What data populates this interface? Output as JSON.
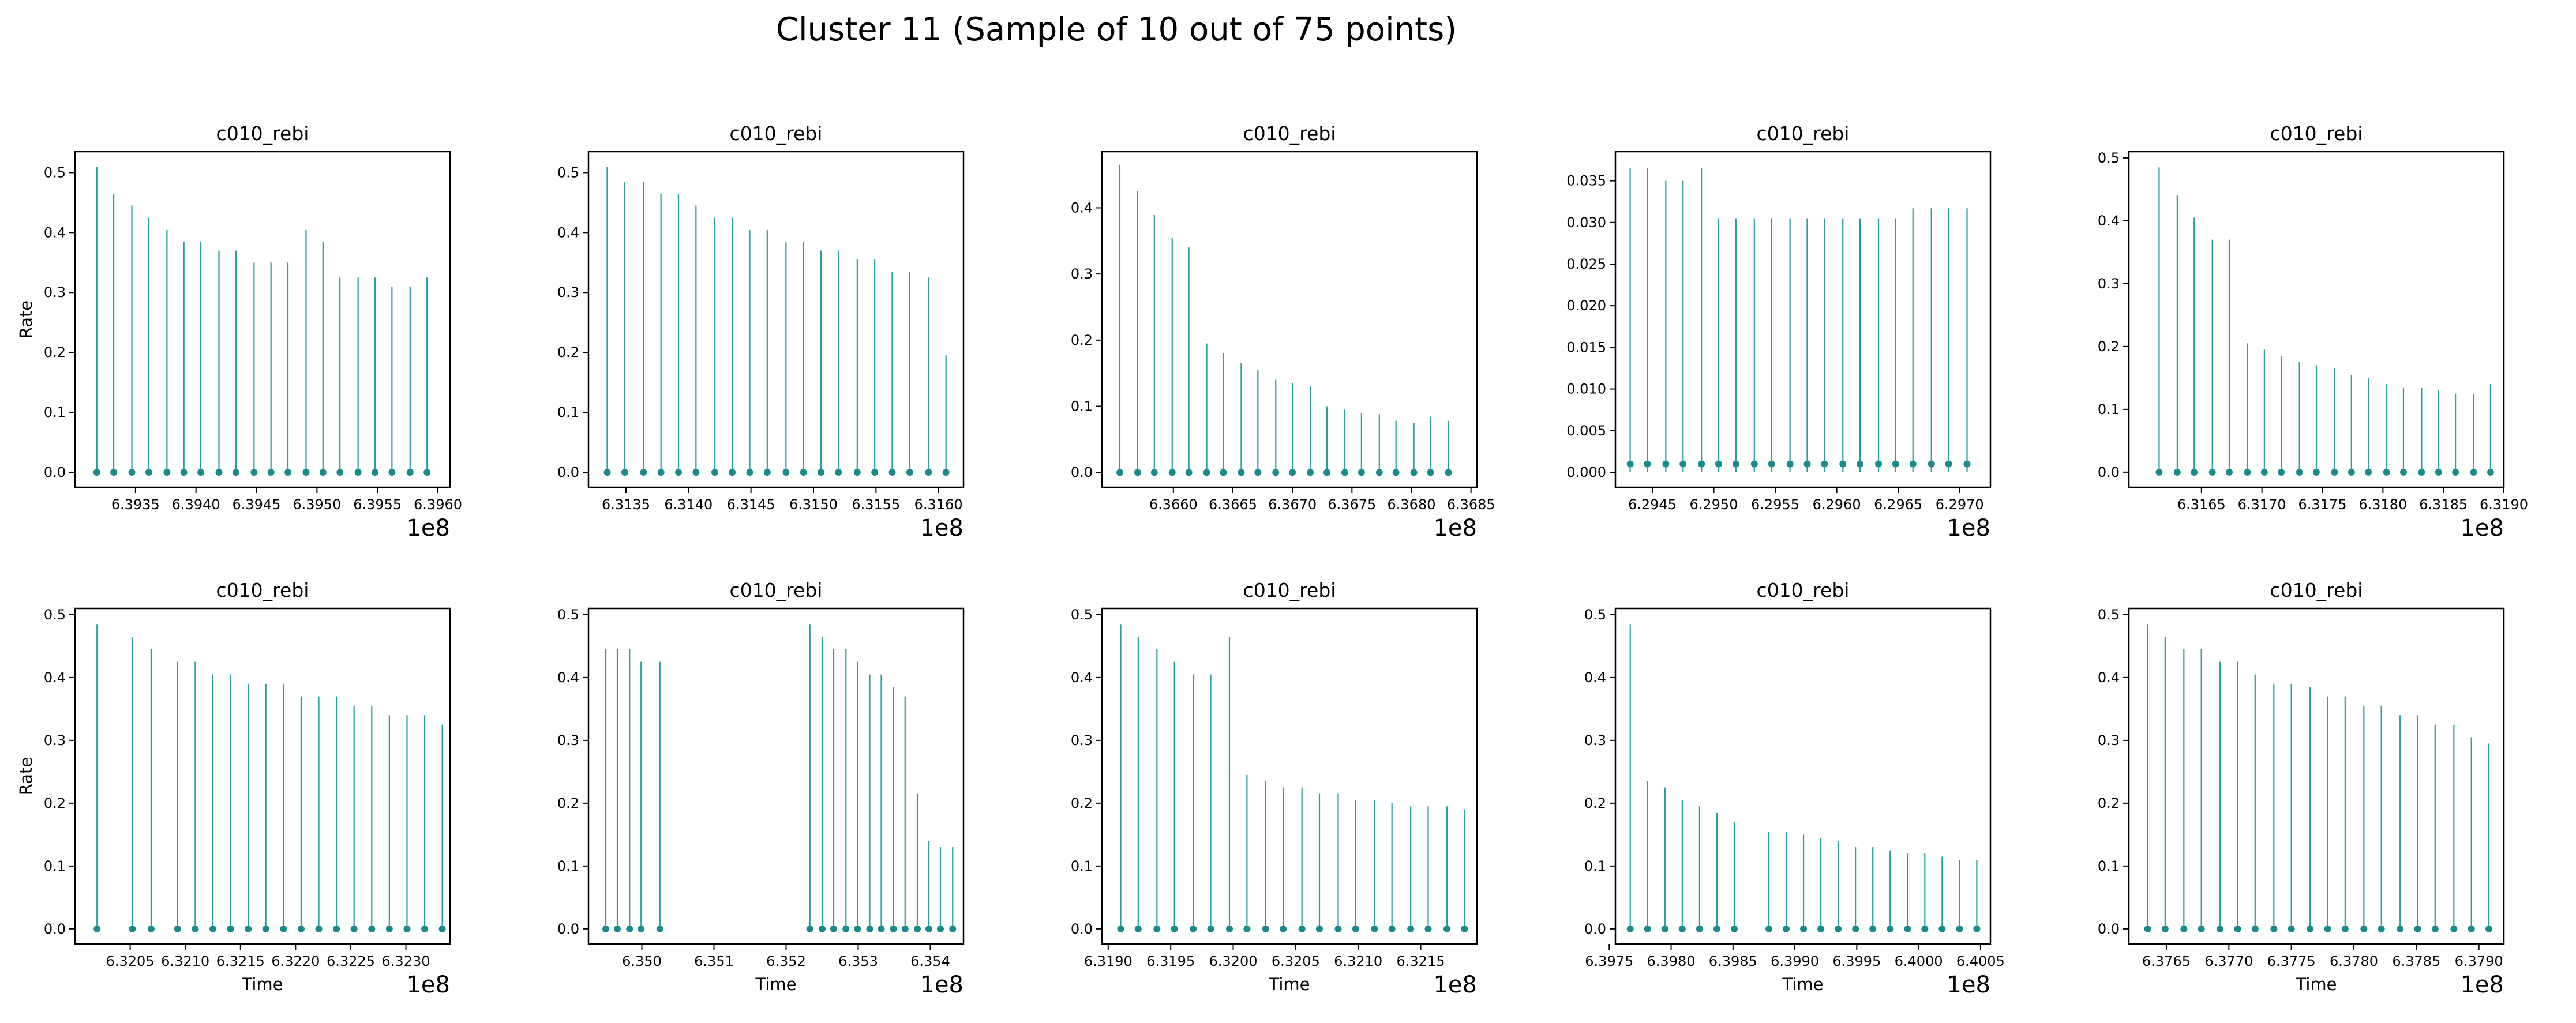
{
  "figure": {
    "title": "Cluster 11 (Sample of 10 out of 75 points)",
    "marker_color": "#1a8a8f",
    "stem_color": "#2a9d9f"
  },
  "chart_data": [
    {
      "type": "stem",
      "title": "c010_rebi",
      "ylabel": "Rate",
      "xlabel": "",
      "x_offset_label": "1e8",
      "xlim": [
        6.393,
        6.3961
      ],
      "ylim": [
        -0.025,
        0.535
      ],
      "xticks": [
        6.3935,
        6.394,
        6.3945,
        6.395,
        6.3955,
        6.396
      ],
      "xtick_labels": [
        "6.3935",
        "6.3940",
        "6.3945",
        "6.3950",
        "6.3955",
        "6.3960"
      ],
      "yticks": [
        0,
        0.1,
        0.2,
        0.3,
        0.4,
        0.5
      ],
      "ytick_labels": [
        "0.0",
        "0.1",
        "0.2",
        "0.3",
        "0.4",
        "0.5"
      ],
      "x": [
        6.39318,
        6.39332,
        6.39347,
        6.39361,
        6.39376,
        6.3939,
        6.39404,
        6.39419,
        6.39433,
        6.39448,
        6.39462,
        6.39476,
        6.39491,
        6.39505,
        6.39519,
        6.39534,
        6.39548,
        6.39562,
        6.39577,
        6.39591
      ],
      "y": [
        0.51,
        0.465,
        0.445,
        0.425,
        0.405,
        0.385,
        0.385,
        0.37,
        0.37,
        0.35,
        0.35,
        0.35,
        0.405,
        0.385,
        0.325,
        0.325,
        0.325,
        0.31,
        0.31,
        0.325
      ]
    },
    {
      "type": "stem",
      "title": "c010_rebi",
      "ylabel": "",
      "xlabel": "",
      "x_offset_label": "1e8",
      "xlim": [
        6.3132,
        6.3162
      ],
      "ylim": [
        -0.025,
        0.535
      ],
      "xticks": [
        6.3135,
        6.314,
        6.3145,
        6.315,
        6.3155,
        6.316
      ],
      "xtick_labels": [
        "6.3135",
        "6.3140",
        "6.3145",
        "6.3150",
        "6.3155",
        "6.3160"
      ],
      "yticks": [
        0,
        0.1,
        0.2,
        0.3,
        0.4,
        0.5
      ],
      "ytick_labels": [
        "0.0",
        "0.1",
        "0.2",
        "0.3",
        "0.4",
        "0.5"
      ],
      "x": [
        6.31335,
        6.31349,
        6.31364,
        6.31378,
        6.31392,
        6.31406,
        6.31421,
        6.31435,
        6.31449,
        6.31463,
        6.31478,
        6.31492,
        6.31506,
        6.3152,
        6.31535,
        6.31549,
        6.31563,
        6.31577,
        6.31592,
        6.31606
      ],
      "y": [
        0.51,
        0.485,
        0.485,
        0.465,
        0.465,
        0.445,
        0.425,
        0.425,
        0.405,
        0.405,
        0.385,
        0.385,
        0.37,
        0.37,
        0.355,
        0.355,
        0.335,
        0.335,
        0.325,
        0.195
      ]
    },
    {
      "type": "stem",
      "title": "c010_rebi",
      "ylabel": "",
      "xlabel": "",
      "x_offset_label": "1e8",
      "xlim": [
        6.3654,
        6.36855
      ],
      "ylim": [
        -0.0225,
        0.485
      ],
      "xticks": [
        6.366,
        6.3665,
        6.367,
        6.3675,
        6.368,
        6.3685
      ],
      "xtick_labels": [
        "6.3660",
        "6.3665",
        "6.3670",
        "6.3675",
        "6.3680",
        "6.3685"
      ],
      "yticks": [
        0,
        0.1,
        0.2,
        0.3,
        0.4
      ],
      "ytick_labels": [
        "0.0",
        "0.1",
        "0.2",
        "0.3",
        "0.4"
      ],
      "x": [
        6.36555,
        6.3657,
        6.36584,
        6.36599,
        6.36613,
        6.36628,
        6.36642,
        6.36657,
        6.36671,
        6.36686,
        6.367,
        6.36715,
        6.36729,
        6.36744,
        6.36758,
        6.36773,
        6.36787,
        6.36802,
        6.36816,
        6.36831
      ],
      "y": [
        0.465,
        0.425,
        0.39,
        0.355,
        0.34,
        0.195,
        0.18,
        0.165,
        0.155,
        0.14,
        0.135,
        0.13,
        0.1,
        0.095,
        0.09,
        0.088,
        0.078,
        0.075,
        0.084,
        0.078
      ]
    },
    {
      "type": "stem",
      "title": "c010_rebi",
      "ylabel": "",
      "xlabel": "",
      "x_offset_label": "1e8",
      "xlim": [
        6.2942,
        6.29725
      ],
      "ylim": [
        -0.0018,
        0.0385
      ],
      "xticks": [
        6.2945,
        6.295,
        6.2955,
        6.296,
        6.2965,
        6.297
      ],
      "xtick_labels": [
        "6.2945",
        "6.2950",
        "6.2955",
        "6.2960",
        "6.2965",
        "6.2970"
      ],
      "yticks": [
        0,
        0.005,
        0.01,
        0.015,
        0.02,
        0.025,
        0.03,
        0.035
      ],
      "ytick_labels": [
        "0.000",
        "0.005",
        "0.010",
        "0.015",
        "0.020",
        "0.025",
        "0.030",
        "0.035"
      ],
      "x": [
        6.29432,
        6.29446,
        6.29461,
        6.29475,
        6.2949,
        6.29504,
        6.29518,
        6.29533,
        6.29547,
        6.29562,
        6.29576,
        6.2959,
        6.29605,
        6.29619,
        6.29634,
        6.29648,
        6.29662,
        6.29677,
        6.29691,
        6.29706
      ],
      "y": [
        0.0365,
        0.0365,
        0.035,
        0.035,
        0.0365,
        0.0305,
        0.0305,
        0.0305,
        0.0305,
        0.0305,
        0.0305,
        0.0305,
        0.0305,
        0.0305,
        0.0305,
        0.0305,
        0.0317,
        0.0317,
        0.0317,
        0.0317
      ],
      "marker_y": 0.001
    },
    {
      "type": "stem",
      "title": "c010_rebi",
      "ylabel": "",
      "xlabel": "",
      "x_offset_label": "1e8",
      "xlim": [
        6.3159,
        6.319
      ],
      "ylim": [
        -0.024,
        0.51
      ],
      "xticks": [
        6.3165,
        6.317,
        6.3175,
        6.318,
        6.3185,
        6.319
      ],
      "xtick_labels": [
        "6.3165",
        "6.3170",
        "6.3175",
        "6.3180",
        "6.3185",
        "6.3190"
      ],
      "yticks": [
        0,
        0.1,
        0.2,
        0.3,
        0.4,
        0.5
      ],
      "ytick_labels": [
        "0.0",
        "0.1",
        "0.2",
        "0.3",
        "0.4",
        "0.5"
      ],
      "x": [
        6.31615,
        6.3163,
        6.31644,
        6.31659,
        6.31673,
        6.31688,
        6.31702,
        6.31716,
        6.31731,
        6.31745,
        6.3176,
        6.31774,
        6.31788,
        6.31803,
        6.31817,
        6.31832,
        6.31846,
        6.3186,
        6.31875,
        6.31889
      ],
      "y": [
        0.485,
        0.44,
        0.405,
        0.37,
        0.37,
        0.205,
        0.195,
        0.185,
        0.175,
        0.17,
        0.165,
        0.155,
        0.15,
        0.14,
        0.135,
        0.135,
        0.13,
        0.125,
        0.125,
        0.14
      ]
    },
    {
      "type": "stem",
      "title": "c010_rebi",
      "ylabel": "Rate",
      "xlabel": "Time",
      "x_offset_label": "1e8",
      "xlim": [
        6.32,
        6.3234
      ],
      "ylim": [
        -0.024,
        0.51
      ],
      "xticks": [
        6.3205,
        6.321,
        6.3215,
        6.322,
        6.3225,
        6.323
      ],
      "xtick_labels": [
        "6.3205",
        "6.3210",
        "6.3215",
        "6.3220",
        "6.3225",
        "6.3230"
      ],
      "yticks": [
        0,
        0.1,
        0.2,
        0.3,
        0.4,
        0.5
      ],
      "ytick_labels": [
        "0.0",
        "0.1",
        "0.2",
        "0.3",
        "0.4",
        "0.5"
      ],
      "x": [
        6.3202,
        6.32052,
        6.32069,
        6.32093,
        6.32109,
        6.32125,
        6.32141,
        6.32157,
        6.32173,
        6.32189,
        6.32205,
        6.32221,
        6.32237,
        6.32253,
        6.32269,
        6.32285,
        6.32301,
        6.32317,
        6.32333
      ],
      "y": [
        0.485,
        0.465,
        0.445,
        0.425,
        0.425,
        0.405,
        0.405,
        0.39,
        0.39,
        0.39,
        0.37,
        0.37,
        0.37,
        0.355,
        0.355,
        0.34,
        0.34,
        0.34,
        0.325
      ]
    },
    {
      "type": "stem",
      "title": "c010_rebi",
      "ylabel": "",
      "xlabel": "Time",
      "x_offset_label": "1e8",
      "xlim": [
        6.34926,
        6.35446
      ],
      "ylim": [
        -0.024,
        0.51
      ],
      "xticks": [
        6.35,
        6.351,
        6.352,
        6.353,
        6.354
      ],
      "xtick_labels": [
        "6.350",
        "6.351",
        "6.352",
        "6.353",
        "6.354"
      ],
      "yticks": [
        0,
        0.1,
        0.2,
        0.3,
        0.4,
        0.5
      ],
      "ytick_labels": [
        "0.0",
        "0.1",
        "0.2",
        "0.3",
        "0.4",
        "0.5"
      ],
      "x": [
        6.3495,
        6.34966,
        6.34983,
        6.34999,
        6.35025,
        6.35233,
        6.3525,
        6.35266,
        6.35283,
        6.35299,
        6.35316,
        6.35332,
        6.35349,
        6.35365,
        6.35382,
        6.35398,
        6.35414,
        6.35431
      ],
      "y": [
        0.445,
        0.445,
        0.445,
        0.425,
        0.425,
        0.485,
        0.465,
        0.445,
        0.445,
        0.425,
        0.405,
        0.405,
        0.385,
        0.37,
        0.215,
        0.14,
        0.13,
        0.13
      ]
    },
    {
      "type": "stem",
      "title": "c010_rebi",
      "ylabel": "",
      "xlabel": "Time",
      "x_offset_label": "1e8",
      "xlim": [
        6.31895,
        6.32195
      ],
      "ylim": [
        -0.024,
        0.51
      ],
      "xticks": [
        6.319,
        6.3195,
        6.32,
        6.3205,
        6.321,
        6.3215
      ],
      "xtick_labels": [
        "6.3190",
        "6.3195",
        "6.3200",
        "6.3205",
        "6.3210",
        "6.3215"
      ],
      "yticks": [
        0,
        0.1,
        0.2,
        0.3,
        0.4,
        0.5
      ],
      "ytick_labels": [
        "0.0",
        "0.1",
        "0.2",
        "0.3",
        "0.4",
        "0.5"
      ],
      "x": [
        6.3191,
        6.31924,
        6.31939,
        6.31953,
        6.31968,
        6.31982,
        6.31997,
        6.32011,
        6.32026,
        6.3204,
        6.32055,
        6.32069,
        6.32084,
        6.32098,
        6.32113,
        6.32127,
        6.32142,
        6.32156,
        6.32171,
        6.32185
      ],
      "y": [
        0.485,
        0.465,
        0.445,
        0.425,
        0.405,
        0.405,
        0.465,
        0.245,
        0.235,
        0.225,
        0.225,
        0.215,
        0.215,
        0.205,
        0.205,
        0.2,
        0.195,
        0.195,
        0.195,
        0.19
      ]
    },
    {
      "type": "stem",
      "title": "c010_rebi",
      "ylabel": "",
      "xlabel": "Time",
      "x_offset_label": "1e8",
      "xlim": [
        6.39755,
        6.40058
      ],
      "ylim": [
        -0.024,
        0.51
      ],
      "xticks": [
        6.3975,
        6.398,
        6.3985,
        6.399,
        6.3995,
        6.4,
        6.4005
      ],
      "xtick_labels": [
        "6.3975",
        "6.3980",
        "6.3985",
        "6.3990",
        "6.3995",
        "6.4000",
        "6.4005"
      ],
      "yticks": [
        0,
        0.1,
        0.2,
        0.3,
        0.4,
        0.5
      ],
      "ytick_labels": [
        "0.0",
        "0.1",
        "0.2",
        "0.3",
        "0.4",
        "0.5"
      ],
      "x": [
        6.39767,
        6.39781,
        6.39795,
        6.39809,
        6.39823,
        6.39837,
        6.39851,
        6.39879,
        6.39893,
        6.39907,
        6.39921,
        6.39935,
        6.39949,
        6.39963,
        6.39977,
        6.39991,
        6.40005,
        6.40019,
        6.40033,
        6.40047
      ],
      "y": [
        0.485,
        0.235,
        0.225,
        0.205,
        0.195,
        0.185,
        0.17,
        0.155,
        0.155,
        0.15,
        0.145,
        0.14,
        0.13,
        0.13,
        0.125,
        0.12,
        0.12,
        0.115,
        0.11,
        0.11
      ]
    },
    {
      "type": "stem",
      "title": "c010_rebi",
      "ylabel": "",
      "xlabel": "Time",
      "x_offset_label": "1e8",
      "xlim": [
        6.3762,
        6.3792
      ],
      "ylim": [
        -0.024,
        0.51
      ],
      "xticks": [
        6.3765,
        6.377,
        6.3775,
        6.378,
        6.3785,
        6.379
      ],
      "xtick_labels": [
        "6.3765",
        "6.3770",
        "6.3775",
        "6.3780",
        "6.3785",
        "6.3790"
      ],
      "yticks": [
        0,
        0.1,
        0.2,
        0.3,
        0.4,
        0.5
      ],
      "ytick_labels": [
        "0.0",
        "0.1",
        "0.2",
        "0.3",
        "0.4",
        "0.5"
      ],
      "x": [
        6.37635,
        6.37649,
        6.37664,
        6.37678,
        6.37693,
        6.37707,
        6.37721,
        6.37736,
        6.3775,
        6.37765,
        6.37779,
        6.37793,
        6.37808,
        6.37822,
        6.37837,
        6.37851,
        6.37865,
        6.3788,
        6.37894,
        6.37908
      ],
      "y": [
        0.485,
        0.465,
        0.445,
        0.445,
        0.425,
        0.425,
        0.405,
        0.39,
        0.39,
        0.385,
        0.37,
        0.37,
        0.355,
        0.355,
        0.34,
        0.34,
        0.325,
        0.325,
        0.305,
        0.295
      ]
    }
  ]
}
